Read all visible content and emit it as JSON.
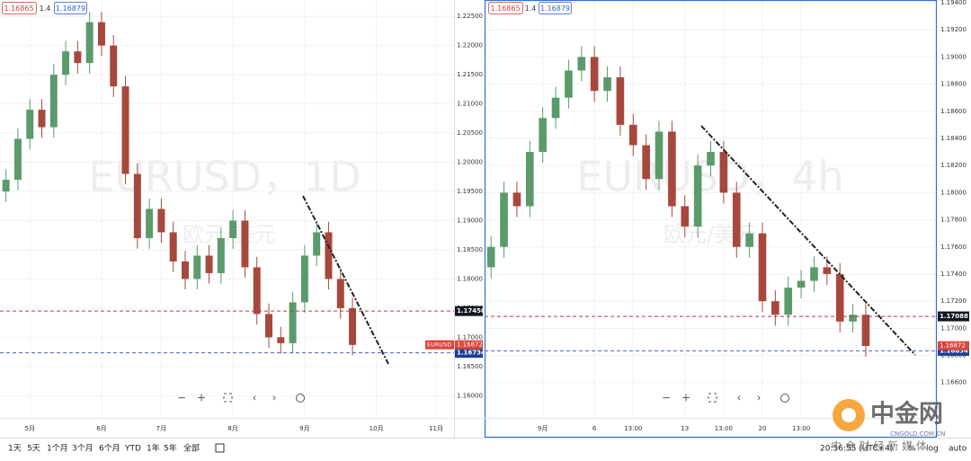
{
  "chart_data": [
    {
      "type": "candlestick",
      "symbol_title": "EURUSD，1D",
      "symbol_subtitle": "欧元/美元",
      "quote": {
        "bid": "1.16865",
        "spread": "1.4",
        "ask": "1.16879"
      },
      "up_color": "#5b9a6b",
      "down_color": "#a7483d",
      "grid": true,
      "xlim": [
        -0.5,
        37.5
      ],
      "ylim": [
        1.1562,
        1.2278
      ],
      "xticks": [
        {
          "value": 2,
          "label": "5月"
        },
        {
          "value": 8,
          "label": "6月"
        },
        {
          "value": 13,
          "label": "7月"
        },
        {
          "value": 19,
          "label": "8月"
        },
        {
          "value": 25,
          "label": "9月"
        },
        {
          "value": 31,
          "label": "10月"
        },
        {
          "value": 36,
          "label": "11月"
        }
      ],
      "yticks": [
        {
          "value": 1.225,
          "label": "1.22500"
        },
        {
          "value": 1.22,
          "label": "1.22000"
        },
        {
          "value": 1.215,
          "label": "1.21500"
        },
        {
          "value": 1.21,
          "label": "1.21000"
        },
        {
          "value": 1.205,
          "label": "1.20500"
        },
        {
          "value": 1.2,
          "label": "1.20000"
        },
        {
          "value": 1.195,
          "label": "1.19500"
        },
        {
          "value": 1.19,
          "label": "1.19000"
        },
        {
          "value": 1.185,
          "label": "1.18500"
        },
        {
          "value": 1.18,
          "label": "1.18000"
        },
        {
          "value": 1.175,
          "label": "1.17500"
        },
        {
          "value": 1.17,
          "label": "1.17000"
        },
        {
          "value": 1.165,
          "label": "1.16500"
        },
        {
          "value": 1.16,
          "label": "1.16000"
        }
      ],
      "open": [
        1.195,
        1.197,
        1.204,
        1.209,
        1.206,
        1.215,
        1.219,
        1.217,
        1.224,
        1.22,
        1.213,
        1.198,
        1.187,
        1.192,
        1.188,
        1.183,
        1.18,
        1.184,
        1.181,
        1.187,
        1.19,
        1.182,
        1.174,
        1.17,
        1.169,
        1.176,
        1.184,
        1.188,
        1.18,
        1.175
      ],
      "high": [
        1.1988,
        1.2058,
        1.2108,
        1.2108,
        1.2168,
        1.2208,
        1.2208,
        1.2258,
        1.2258,
        1.2218,
        1.2148,
        1.1998,
        1.1938,
        1.1938,
        1.1898,
        1.1848,
        1.1858,
        1.1858,
        1.1888,
        1.1918,
        1.1918,
        1.1838,
        1.1758,
        1.1718,
        1.1778,
        1.1858,
        1.1898,
        1.1898,
        1.1818,
        1.1768
      ],
      "low": [
        1.1932,
        1.1952,
        1.2022,
        1.2042,
        1.2042,
        1.2132,
        1.2152,
        1.2152,
        1.2182,
        1.2112,
        1.1962,
        1.1852,
        1.1852,
        1.1862,
        1.1812,
        1.1782,
        1.1782,
        1.1792,
        1.1792,
        1.1852,
        1.1802,
        1.1722,
        1.1682,
        1.1672,
        1.1672,
        1.1742,
        1.1822,
        1.1782,
        1.1732,
        1.1669
      ],
      "close": [
        1.197,
        1.204,
        1.209,
        1.206,
        1.215,
        1.219,
        1.217,
        1.224,
        1.22,
        1.213,
        1.198,
        1.187,
        1.192,
        1.188,
        1.183,
        1.18,
        1.184,
        1.181,
        1.187,
        1.19,
        1.182,
        1.174,
        1.17,
        1.169,
        1.176,
        1.184,
        1.188,
        1.18,
        1.175,
        1.1687
      ],
      "price_lines": [
        {
          "value": 1.1745,
          "label": "1.17450",
          "color": "#c0344a",
          "tag_color": "#131722"
        },
        {
          "value": 1.16734,
          "label": "1.16734",
          "color": "#4d5fc0",
          "tag_color": "#1c3f95"
        }
      ],
      "last_price": {
        "symbol": "EURUSD",
        "value": 1.16872,
        "label": "1.16872",
        "color": "#d9453a"
      }
    },
    {
      "type": "candlestick",
      "symbol_title": "EURUSD，4h",
      "symbol_subtitle": "欧元/美元",
      "quote": {
        "bid": "1.16865",
        "spread": "1.4",
        "ask": "1.16879"
      },
      "up_color": "#5b9a6b",
      "down_color": "#a7483d",
      "grid": true,
      "xlim": [
        -0.5,
        34.5
      ],
      "ylim": [
        1.1634,
        1.1942
      ],
      "xticks": [
        {
          "value": 4,
          "label": "9月"
        },
        {
          "value": 8,
          "label": "6"
        },
        {
          "value": 11,
          "label": "13:00"
        },
        {
          "value": 15,
          "label": "13"
        },
        {
          "value": 18,
          "label": "13:00"
        },
        {
          "value": 21,
          "label": "20"
        },
        {
          "value": 24,
          "label": "13:00"
        }
      ],
      "yticks": [
        {
          "value": 1.194,
          "label": "1.19400"
        },
        {
          "value": 1.192,
          "label": "1.19200"
        },
        {
          "value": 1.19,
          "label": "1.19000"
        },
        {
          "value": 1.188,
          "label": "1.18800"
        },
        {
          "value": 1.186,
          "label": "1.18600"
        },
        {
          "value": 1.184,
          "label": "1.18400"
        },
        {
          "value": 1.182,
          "label": "1.18200"
        },
        {
          "value": 1.18,
          "label": "1.18000"
        },
        {
          "value": 1.178,
          "label": "1.17800"
        },
        {
          "value": 1.176,
          "label": "1.17600"
        },
        {
          "value": 1.174,
          "label": "1.17400"
        },
        {
          "value": 1.172,
          "label": "1.17200"
        },
        {
          "value": 1.17,
          "label": "1.17000"
        },
        {
          "value": 1.168,
          "label": "1.16800"
        },
        {
          "value": 1.166,
          "label": "1.16600"
        }
      ],
      "open": [
        1.1745,
        1.176,
        1.18,
        1.179,
        1.183,
        1.1855,
        1.187,
        1.189,
        1.19,
        1.1875,
        1.1885,
        1.185,
        1.1835,
        1.181,
        1.1845,
        1.179,
        1.1775,
        1.182,
        1.183,
        1.18,
        1.176,
        1.177,
        1.172,
        1.171,
        1.173,
        1.1735,
        1.1745,
        1.174,
        1.1705,
        1.171
      ],
      "high": [
        1.1768,
        1.1808,
        1.1808,
        1.1838,
        1.1863,
        1.1878,
        1.1898,
        1.1908,
        1.1908,
        1.1893,
        1.1893,
        1.1858,
        1.1843,
        1.1853,
        1.1853,
        1.1798,
        1.1828,
        1.1838,
        1.1838,
        1.1808,
        1.1778,
        1.1778,
        1.1728,
        1.1738,
        1.1743,
        1.1753,
        1.1753,
        1.1748,
        1.1718,
        1.1718
      ],
      "low": [
        1.1737,
        1.1752,
        1.1782,
        1.1782,
        1.1822,
        1.1847,
        1.1862,
        1.1882,
        1.1867,
        1.1867,
        1.1842,
        1.1827,
        1.1802,
        1.1802,
        1.1782,
        1.1767,
        1.1767,
        1.1812,
        1.1792,
        1.1752,
        1.1752,
        1.1712,
        1.1702,
        1.1702,
        1.1722,
        1.1727,
        1.1732,
        1.1697,
        1.1697,
        1.1679
      ],
      "close": [
        1.176,
        1.18,
        1.179,
        1.183,
        1.1855,
        1.187,
        1.189,
        1.19,
        1.1875,
        1.1885,
        1.185,
        1.1835,
        1.181,
        1.1845,
        1.179,
        1.1775,
        1.182,
        1.183,
        1.18,
        1.176,
        1.177,
        1.172,
        1.171,
        1.173,
        1.1735,
        1.1745,
        1.174,
        1.1705,
        1.171,
        1.1687
      ],
      "price_lines": [
        {
          "value": 1.17088,
          "label": "1.17088",
          "color": "#c0344a",
          "tag_color": "#131722"
        },
        {
          "value": 1.16834,
          "label": "1.16834",
          "color": "#4d5fc0",
          "tag_color": "#1c3f95"
        }
      ],
      "last_price": {
        "value": 1.16872,
        "label": "1.16872",
        "color": "#d9453a"
      }
    }
  ],
  "toolbar": {
    "ranges": [
      "1天",
      "5天",
      "1个月",
      "3个月",
      "6个月",
      "YTD",
      "1年",
      "5年",
      "全部"
    ],
    "time": "20:56:55 (UTC+4)",
    "percent": "%",
    "log": "log",
    "auto": "auto"
  },
  "logo": {
    "name": "中金网",
    "domain": "CNGOLD.COM.CN",
    "slogan": "中 金 财 经 新 媒 体"
  }
}
